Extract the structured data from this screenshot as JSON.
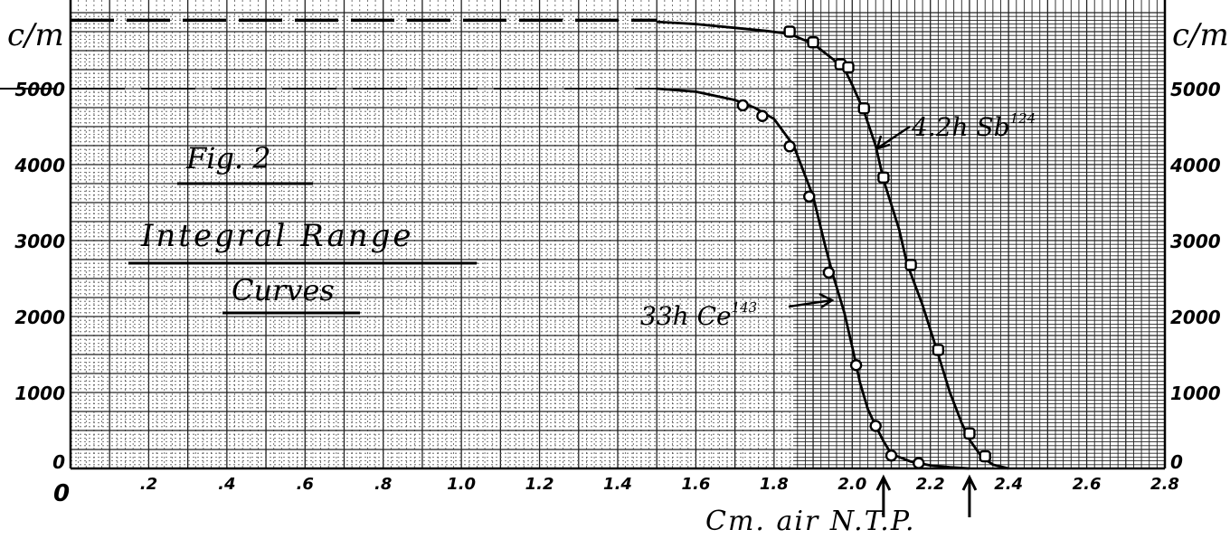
{
  "chart_data": {
    "type": "line",
    "title": "Fig. 2",
    "subtitle": "Integral Range",
    "subtitle2": "Curves",
    "xlabel": "Cm. air N.T.P.",
    "ylabel": "c/m",
    "ylabel_right": "c/m",
    "xlim": [
      0,
      2.8
    ],
    "ylim": [
      0,
      6000
    ],
    "x_tick_labels": [
      {
        "value": 0,
        "label": "0"
      },
      {
        "value": 0.2,
        "label": ".2"
      },
      {
        "value": 0.4,
        "label": ".4"
      },
      {
        "value": 0.6,
        "label": ".6"
      },
      {
        "value": 0.8,
        "label": ".8"
      },
      {
        "value": 1.0,
        "label": "1.0"
      },
      {
        "value": 1.2,
        "label": "1.2"
      },
      {
        "value": 1.4,
        "label": "1.4"
      },
      {
        "value": 1.6,
        "label": "1.6"
      },
      {
        "value": 1.8,
        "label": "1.8"
      },
      {
        "value": 2.0,
        "label": "2.0"
      },
      {
        "value": 2.2,
        "label": "2.2"
      },
      {
        "value": 2.4,
        "label": "2.4"
      },
      {
        "value": 2.6,
        "label": "2.6"
      },
      {
        "value": 2.8,
        "label": "2.8"
      }
    ],
    "y_tick_labels_left": [
      {
        "value": 0,
        "label": "0"
      },
      {
        "value": 1000,
        "label": "1000"
      },
      {
        "value": 2000,
        "label": "2000"
      },
      {
        "value": 3000,
        "label": "3000"
      },
      {
        "value": 4000,
        "label": "4000"
      },
      {
        "value": 5000,
        "label": "5000"
      }
    ],
    "y_tick_labels_right": [
      {
        "value": 0,
        "label": "0"
      },
      {
        "value": 1000,
        "label": "1000"
      },
      {
        "value": 2000,
        "label": "2000"
      },
      {
        "value": 3000,
        "label": "3000"
      },
      {
        "value": 4000,
        "label": "4000"
      },
      {
        "value": 5000,
        "label": "5000"
      }
    ],
    "grid": true,
    "series": [
      {
        "name": "33h Ce143",
        "name_base": "33h Ce",
        "name_sup": "143",
        "plateau": 5000,
        "curve": [
          [
            1.5,
            5000
          ],
          [
            1.6,
            4960
          ],
          [
            1.7,
            4850
          ],
          [
            1.75,
            4750
          ],
          [
            1.8,
            4600
          ],
          [
            1.85,
            4250
          ],
          [
            1.9,
            3580
          ],
          [
            1.93,
            2950
          ],
          [
            1.95,
            2560
          ],
          [
            1.98,
            2050
          ],
          [
            2.0,
            1600
          ],
          [
            2.02,
            1130
          ],
          [
            2.04,
            780
          ],
          [
            2.06,
            560
          ],
          [
            2.08,
            360
          ],
          [
            2.1,
            190
          ],
          [
            2.15,
            90
          ],
          [
            2.2,
            40
          ],
          [
            2.25,
            15
          ],
          [
            2.3,
            0
          ]
        ],
        "points": [
          [
            1.72,
            4780
          ],
          [
            1.77,
            4640
          ],
          [
            1.84,
            4240
          ],
          [
            1.89,
            3580
          ],
          [
            1.94,
            2580
          ],
          [
            2.01,
            1360
          ],
          [
            2.06,
            560
          ],
          [
            2.1,
            170
          ],
          [
            2.17,
            70
          ]
        ],
        "marker": "circle"
      },
      {
        "name": "4.2h Sb124",
        "name_base": "4.2h Sb",
        "name_sup": "124",
        "plateau": 5900,
        "curve": [
          [
            1.5,
            5880
          ],
          [
            1.6,
            5850
          ],
          [
            1.7,
            5800
          ],
          [
            1.78,
            5760
          ],
          [
            1.84,
            5720
          ],
          [
            1.9,
            5590
          ],
          [
            1.95,
            5390
          ],
          [
            1.98,
            5260
          ],
          [
            2.0,
            5050
          ],
          [
            2.03,
            4700
          ],
          [
            2.06,
            4250
          ],
          [
            2.08,
            3800
          ],
          [
            2.12,
            3150
          ],
          [
            2.14,
            2700
          ],
          [
            2.18,
            2150
          ],
          [
            2.22,
            1500
          ],
          [
            2.25,
            1000
          ],
          [
            2.28,
            600
          ],
          [
            2.3,
            380
          ],
          [
            2.33,
            160
          ],
          [
            2.36,
            50
          ],
          [
            2.4,
            0
          ]
        ],
        "points": [
          [
            1.84,
            5750
          ],
          [
            1.9,
            5610
          ],
          [
            1.97,
            5320
          ],
          [
            1.99,
            5280
          ],
          [
            2.03,
            4740
          ],
          [
            2.08,
            3830
          ],
          [
            2.15,
            2680
          ],
          [
            2.22,
            1560
          ],
          [
            2.3,
            460
          ],
          [
            2.34,
            160
          ]
        ],
        "marker": "square"
      }
    ],
    "arrows_at_x": [
      2.08,
      2.3
    ]
  }
}
